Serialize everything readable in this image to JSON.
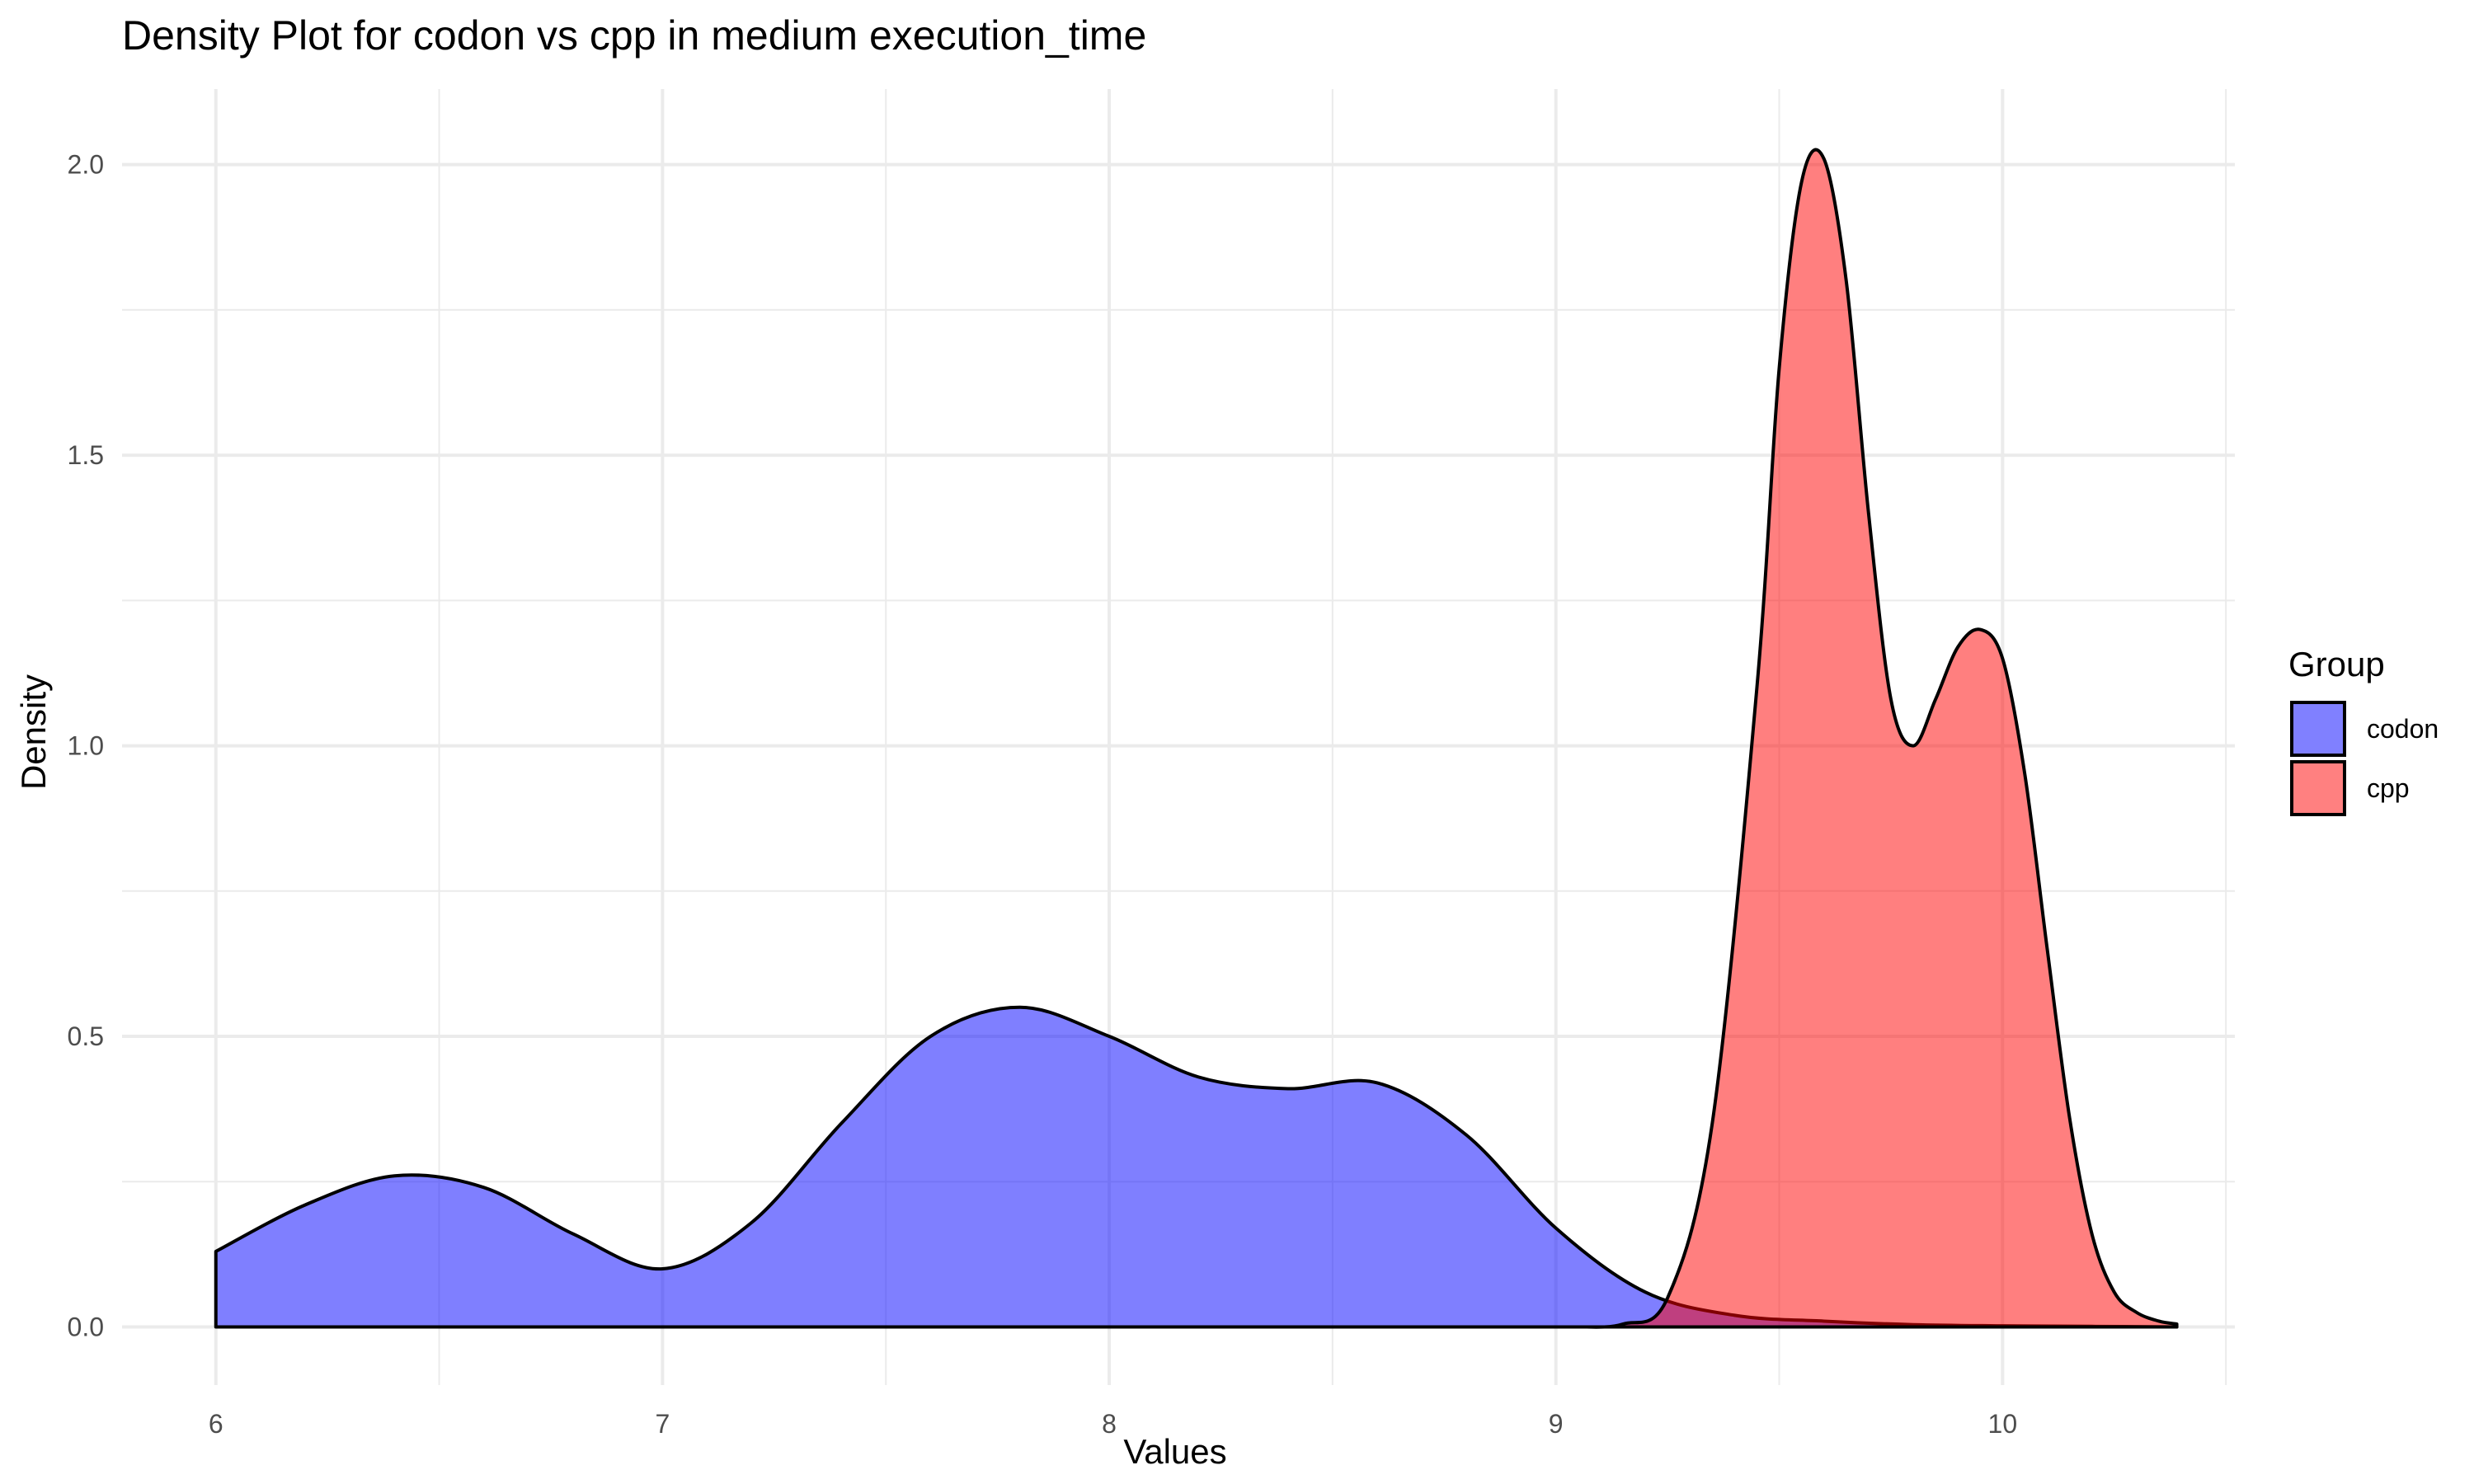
{
  "chart_data": {
    "type": "area",
    "title": "Density Plot for codon vs cpp in medium execution_time",
    "xlabel": "Values",
    "ylabel": "Density",
    "xlim": [
      5.79,
      10.52
    ],
    "ylim": [
      -0.1,
      2.13
    ],
    "x_ticks": [
      6,
      7,
      8,
      9,
      10
    ],
    "x_minor_ticks": [
      6.5,
      7.5,
      8.5,
      9.5,
      10.5
    ],
    "y_ticks": [
      0.0,
      0.5,
      1.0,
      1.5,
      2.0
    ],
    "y_minor_ticks": [
      0.25,
      0.75,
      1.25,
      1.75
    ],
    "x_tick_labels": [
      "6",
      "7",
      "8",
      "9",
      "10"
    ],
    "y_tick_labels": [
      "0.0",
      "0.5",
      "1.0",
      "1.5",
      "2.0"
    ],
    "grid": true,
    "legend": {
      "title": "Group",
      "position": "right",
      "entries": [
        {
          "label": "codon",
          "color": "#8080ff"
        },
        {
          "label": "cpp",
          "color": "#ff8080"
        }
      ]
    },
    "series": [
      {
        "name": "codon",
        "color": "#0000ff",
        "opacity": 0.5,
        "x": [
          6.0,
          6.2,
          6.4,
          6.6,
          6.8,
          7.0,
          7.2,
          7.4,
          7.6,
          7.8,
          8.0,
          8.2,
          8.4,
          8.6,
          8.8,
          9.0,
          9.2,
          9.4,
          9.6,
          9.8,
          10.0,
          10.2,
          10.39
        ],
        "values": [
          0.13,
          0.21,
          0.26,
          0.24,
          0.16,
          0.1,
          0.18,
          0.35,
          0.5,
          0.55,
          0.5,
          0.43,
          0.41,
          0.42,
          0.33,
          0.17,
          0.06,
          0.02,
          0.01,
          0.004,
          0.002,
          0.001,
          0.0
        ]
      },
      {
        "name": "cpp",
        "color": "#ff0000",
        "opacity": 0.5,
        "x": [
          9.05,
          9.15,
          9.25,
          9.35,
          9.45,
          9.5,
          9.55,
          9.6,
          9.65,
          9.7,
          9.75,
          9.8,
          9.85,
          9.9,
          9.95,
          10.0,
          10.05,
          10.1,
          10.15,
          10.2,
          10.25,
          10.3,
          10.35,
          10.39
        ],
        "values": [
          0.0,
          0.005,
          0.05,
          0.35,
          1.1,
          1.65,
          1.97,
          2.01,
          1.8,
          1.4,
          1.08,
          1.0,
          1.08,
          1.17,
          1.2,
          1.15,
          0.95,
          0.65,
          0.36,
          0.16,
          0.06,
          0.025,
          0.01,
          0.005
        ]
      }
    ]
  }
}
